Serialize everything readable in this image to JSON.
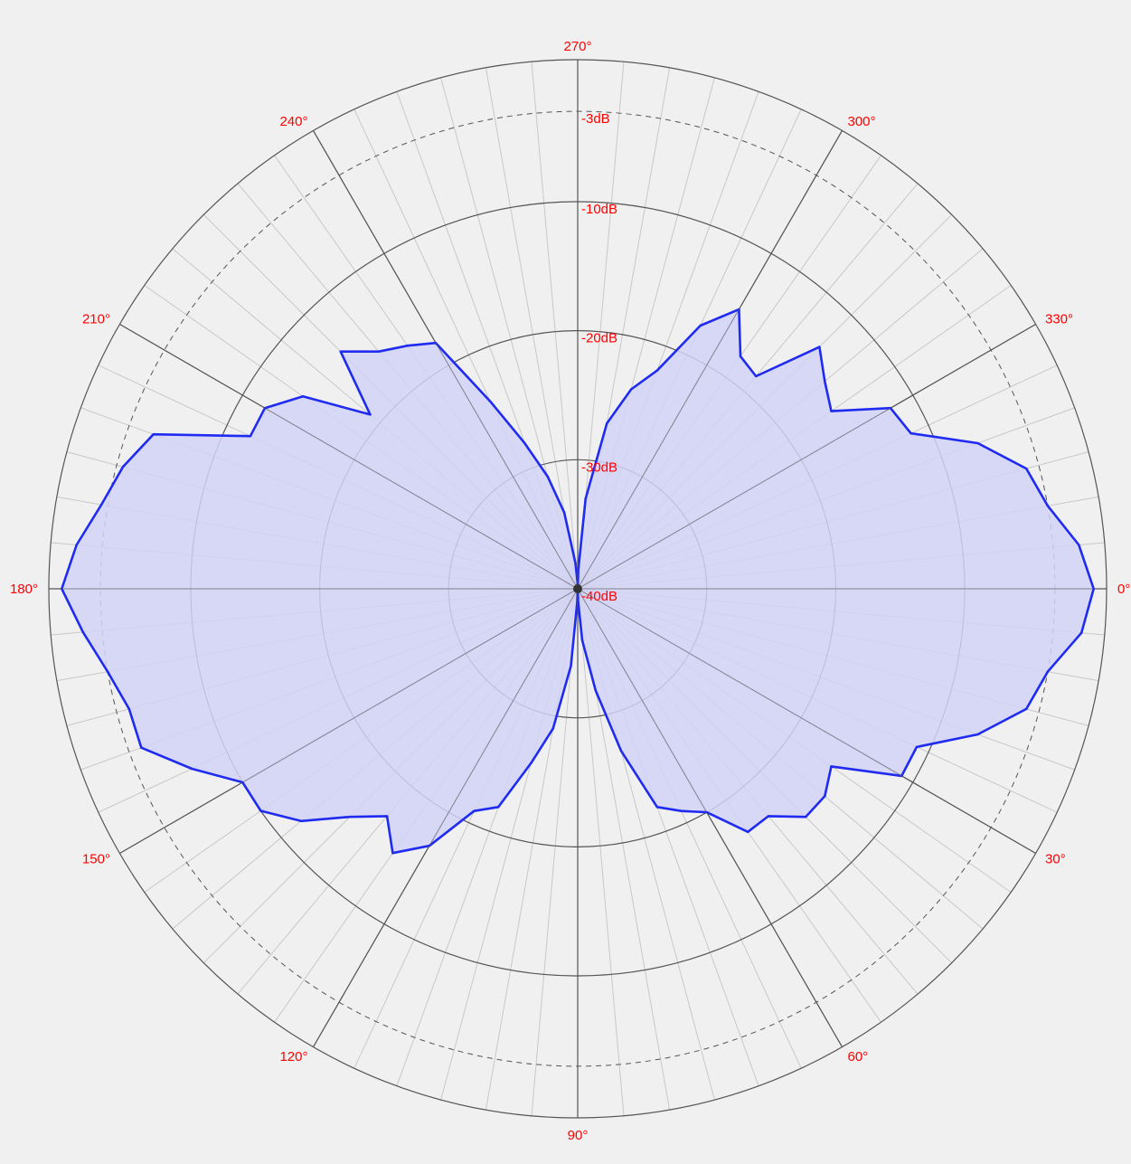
{
  "chart_data": {
    "type": "polar",
    "angle_unit": "degrees",
    "angle_direction": "clockwise",
    "zero_position": "right",
    "angle_labels": [
      "0°",
      "30°",
      "60°",
      "90°",
      "120°",
      "150°",
      "180°",
      "210°",
      "240°",
      "270°",
      "300°",
      "330°"
    ],
    "ring_labels": [
      "-3dB",
      "-10dB",
      "-20dB",
      "-30dB",
      "-40dB"
    ],
    "ring_values": [
      -3,
      -10,
      -20,
      -30,
      -40
    ],
    "dashed_ring": -3,
    "r_range_db": [
      -40,
      1
    ],
    "series": [
      {
        "angles": [
          0,
          5,
          10,
          15,
          20,
          25,
          30,
          35,
          40,
          45,
          50,
          55,
          60,
          65,
          70,
          75,
          80,
          85,
          88,
          90,
          92,
          95,
          100,
          105,
          110,
          115,
          120,
          125,
          130,
          135,
          140,
          145,
          150,
          155,
          160,
          165,
          170,
          175,
          180,
          185,
          190,
          195,
          200,
          205,
          210,
          215,
          220,
          225,
          230,
          235,
          240,
          245,
          250,
          255,
          260,
          265,
          268,
          270,
          272,
          275,
          280,
          285,
          290,
          295,
          300,
          305,
          310,
          315,
          320,
          325,
          330,
          335,
          340,
          345,
          350,
          355
        ],
        "values_db": [
          0,
          -0.8,
          -3,
          -4,
          -7,
          -11,
          -11,
          -16,
          -15,
          -15,
          -17,
          -17,
          -20,
          -21,
          -22,
          -27,
          -32,
          -36,
          -39,
          -40,
          -39,
          -34,
          -29,
          -26,
          -22,
          -21,
          -17,
          -15,
          -17,
          -15,
          -12,
          -10,
          -10,
          -7,
          -4,
          -4,
          -3,
          -1.5,
          0,
          -1,
          -2.5,
          -3.5,
          -5,
          -12,
          -12,
          -14,
          -19,
          -14,
          -16,
          -17,
          -18,
          -24,
          -28,
          -31,
          -34,
          -38,
          -39.5,
          -40,
          -38.5,
          -33,
          -27,
          -24,
          -22,
          -17.5,
          -15,
          -18,
          -18.5,
          -13.5,
          -15,
          -16,
          -12,
          -11.5,
          -7,
          -4,
          -3,
          -1
        ]
      }
    ],
    "colors": {
      "line": "#1f2bf0",
      "fill": "#d2d4f7",
      "label": "#ff0000",
      "grid": "#555555",
      "background": "#f0f0f0"
    }
  }
}
